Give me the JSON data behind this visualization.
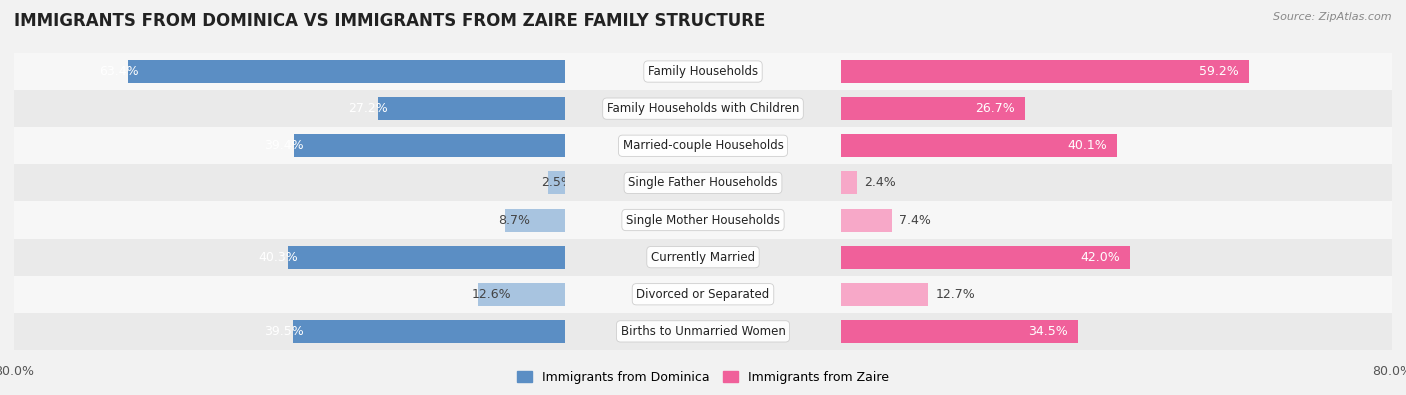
{
  "title": "IMMIGRANTS FROM DOMINICA VS IMMIGRANTS FROM ZAIRE FAMILY STRUCTURE",
  "source": "Source: ZipAtlas.com",
  "categories": [
    "Family Households",
    "Family Households with Children",
    "Married-couple Households",
    "Single Father Households",
    "Single Mother Households",
    "Currently Married",
    "Divorced or Separated",
    "Births to Unmarried Women"
  ],
  "dominica_values": [
    63.4,
    27.2,
    39.4,
    2.5,
    8.7,
    40.3,
    12.6,
    39.5
  ],
  "zaire_values": [
    59.2,
    26.7,
    40.1,
    2.4,
    7.4,
    42.0,
    12.7,
    34.5
  ],
  "dominica_color_strong": "#5b8ec4",
  "dominica_color_light": "#a8c4e0",
  "zaire_color_strong": "#f0609a",
  "zaire_color_light": "#f7a8c8",
  "xlim": 80.0,
  "bar_height": 0.62,
  "bg_color": "#f2f2f2",
  "row_bg_colors": [
    "#f7f7f7",
    "#eaeaea"
  ],
  "legend_label_dominica": "Immigrants from Dominica",
  "legend_label_zaire": "Immigrants from Zaire",
  "title_fontsize": 12,
  "source_fontsize": 8,
  "value_fontsize": 9,
  "category_fontsize": 8.5,
  "axis_tick_fontsize": 9
}
